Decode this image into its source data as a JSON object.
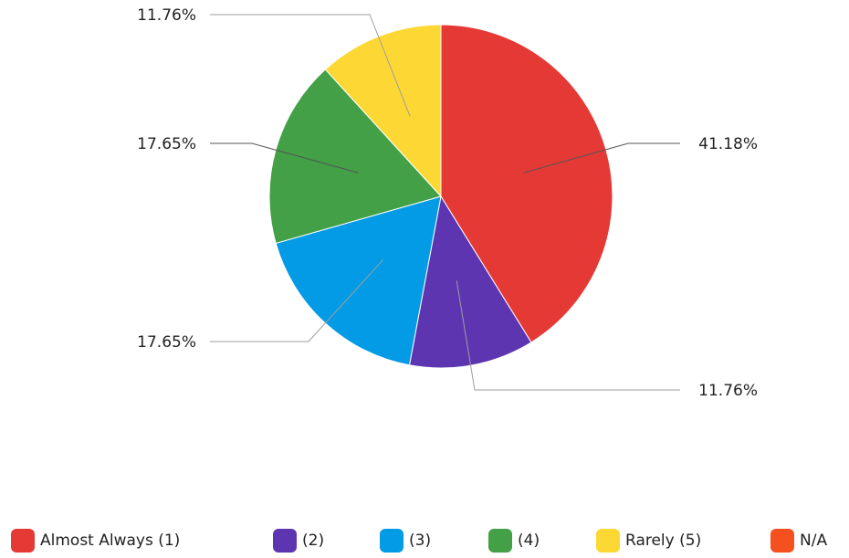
{
  "chart_data": {
    "type": "pie",
    "title": "",
    "slices": [
      {
        "label": "Almost Always (1)",
        "value": 41.18,
        "value_label": "41.18%",
        "color": "#e53935"
      },
      {
        "label": "(2)",
        "value": 11.76,
        "value_label": "11.76%",
        "color": "#5e35b1"
      },
      {
        "label": "(3)",
        "value": 17.65,
        "value_label": "17.65%",
        "color": "#039be5"
      },
      {
        "label": "(4)",
        "value": 17.65,
        "value_label": "17.65%",
        "color": "#43a047"
      },
      {
        "label": "Rarely (5)",
        "value": 11.76,
        "value_label": "11.76%",
        "color": "#fdd835"
      },
      {
        "label": "N/A",
        "value": 0,
        "value_label": "",
        "color": "#f4511e"
      }
    ],
    "legend_position": "bottom",
    "start_angle": "12 o'clock",
    "direction": "clockwise"
  }
}
